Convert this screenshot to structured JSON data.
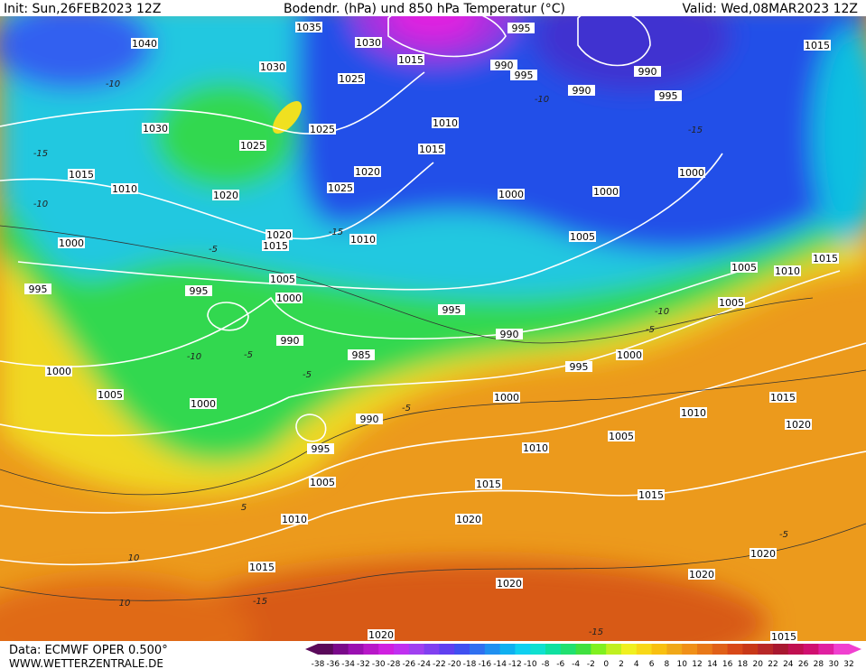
{
  "header": {
    "init": "Init: Sun,26FEB2023 12Z",
    "title": "Bodendr. (hPa) und 850 hPa Temperatur (°C)",
    "valid": "Valid: Wed,08MAR2023 12Z"
  },
  "isobar_labels": [
    1040,
    1035,
    1030,
    1015,
    995,
    990,
    995,
    990,
    990,
    995,
    1015,
    1030,
    1025,
    1030,
    1025,
    1025,
    1010,
    1015,
    1020,
    1025,
    1015,
    1010,
    1020,
    1000,
    1000,
    1000,
    1020,
    1015,
    1010,
    1000,
    1005,
    1005,
    1010,
    1015,
    995,
    995,
    1005,
    1000,
    995,
    1005,
    990,
    990,
    985,
    995,
    1000,
    1000,
    1005,
    1000,
    1000,
    1015,
    1010,
    990,
    1020,
    995,
    1005,
    1010,
    1005,
    1015,
    1015,
    1010,
    1020,
    1020,
    1015,
    1020,
    1020,
    1020,
    1015
  ],
  "isotherm_labels": [
    -10,
    -15,
    -10,
    -5,
    -5,
    -10,
    -5,
    -15,
    -10,
    -5,
    -5,
    5,
    -5,
    10,
    10,
    -15,
    -15,
    -10,
    -15
  ],
  "colorbar": {
    "ticks": [
      -38,
      -36,
      -34,
      -32,
      -30,
      -28,
      -26,
      -24,
      -22,
      -20,
      -18,
      -16,
      -14,
      -12,
      -10,
      -8,
      -6,
      -4,
      -2,
      0,
      2,
      4,
      6,
      8,
      10,
      12,
      14,
      16,
      18,
      20,
      22,
      24,
      26,
      28,
      30,
      32
    ],
    "colors": [
      "#5a0a5a",
      "#7a0a8a",
      "#9a10b0",
      "#b818c8",
      "#d020e0",
      "#c030f0",
      "#a040f0",
      "#8040f0",
      "#6040f0",
      "#4050f0",
      "#3070f0",
      "#2090f0",
      "#10b0f0",
      "#10d0f0",
      "#10e0d0",
      "#10e0a0",
      "#20e070",
      "#40e040",
      "#80f020",
      "#c0f020",
      "#f0f020",
      "#f8d818",
      "#f8c010",
      "#f0a818",
      "#f09018",
      "#e87818",
      "#e06018",
      "#d84818",
      "#c83818",
      "#b82828",
      "#a81830",
      "#c01050",
      "#d01070",
      "#e020a0",
      "#f040d0"
    ]
  },
  "footer": {
    "source": "Data: ECMWF OPER 0.500°",
    "site": "WWW.WETTERZENTRALE.DE"
  }
}
